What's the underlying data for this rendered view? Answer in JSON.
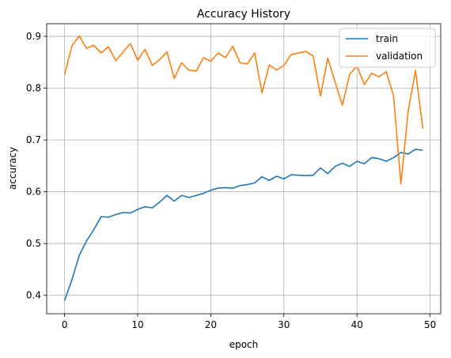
{
  "chart_data": {
    "type": "line",
    "title": "Accuracy History",
    "xlabel": "epoch",
    "ylabel": "accuracy",
    "xlim": [
      -2.45,
      51.45
    ],
    "ylim": [
      0.3645,
      0.9245
    ],
    "xticks": [
      0,
      10,
      20,
      30,
      40,
      50
    ],
    "yticks": [
      0.4,
      0.5,
      0.6,
      0.7,
      0.8,
      0.9
    ],
    "ytick_labels": [
      "0.4",
      "0.5",
      "0.6",
      "0.7",
      "0.8",
      "0.9"
    ],
    "grid": true,
    "legend_position": "top-right",
    "x": [
      0,
      1,
      2,
      3,
      4,
      5,
      6,
      7,
      8,
      9,
      10,
      11,
      12,
      13,
      14,
      15,
      16,
      17,
      18,
      19,
      20,
      21,
      22,
      23,
      24,
      25,
      26,
      27,
      28,
      29,
      30,
      31,
      32,
      33,
      34,
      35,
      36,
      37,
      38,
      39,
      40,
      41,
      42,
      43,
      44,
      45,
      46,
      47,
      48,
      49
    ],
    "series": [
      {
        "name": "train",
        "color": "#1f77b4",
        "values": [
          0.39,
          0.43,
          0.477,
          0.505,
          0.527,
          0.552,
          0.551,
          0.556,
          0.56,
          0.559,
          0.566,
          0.571,
          0.569,
          0.58,
          0.593,
          0.582,
          0.593,
          0.589,
          0.593,
          0.597,
          0.603,
          0.607,
          0.608,
          0.607,
          0.612,
          0.614,
          0.617,
          0.629,
          0.622,
          0.63,
          0.625,
          0.633,
          0.632,
          0.631,
          0.632,
          0.646,
          0.635,
          0.649,
          0.655,
          0.649,
          0.659,
          0.654,
          0.666,
          0.664,
          0.659,
          0.666,
          0.676,
          0.673,
          0.682,
          0.68
        ]
      },
      {
        "name": "validation",
        "color": "#ff7f0e",
        "values": [
          0.826,
          0.882,
          0.901,
          0.877,
          0.883,
          0.868,
          0.88,
          0.853,
          0.87,
          0.886,
          0.854,
          0.875,
          0.844,
          0.855,
          0.87,
          0.819,
          0.849,
          0.835,
          0.833,
          0.859,
          0.852,
          0.868,
          0.859,
          0.881,
          0.849,
          0.847,
          0.868,
          0.791,
          0.845,
          0.835,
          0.844,
          0.865,
          0.868,
          0.871,
          0.862,
          0.785,
          0.858,
          0.812,
          0.767,
          0.827,
          0.843,
          0.807,
          0.829,
          0.822,
          0.832,
          0.785,
          0.615,
          0.756,
          0.834,
          0.722
        ]
      }
    ]
  }
}
